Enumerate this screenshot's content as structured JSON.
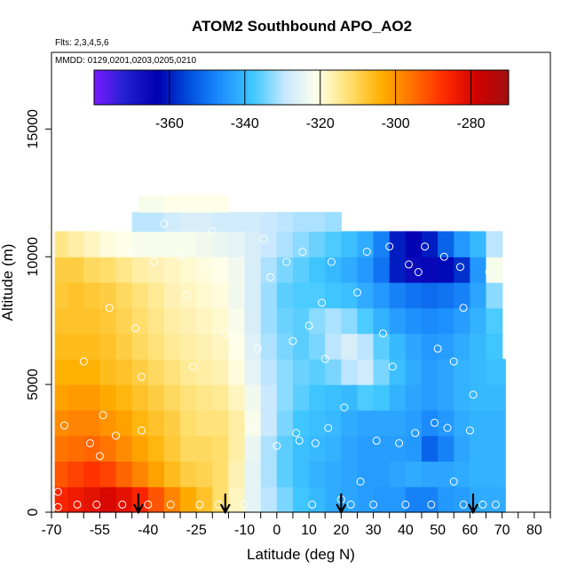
{
  "chart_data": {
    "type": "heatmap",
    "title": "ATOM2 Southbound APO_AO2",
    "note_flights": "Flts: 2,3,4,5,6",
    "note_dates": "MMDD: 0129,0201,0203,0205,0210",
    "xlabel": "Latitude (deg N)",
    "ylabel": "Altitude (m)",
    "xlim": [
      -70,
      85
    ],
    "ylim": [
      0,
      18000
    ],
    "x_ticks": [
      -70,
      -55,
      -40,
      -25,
      -10,
      0,
      10,
      20,
      30,
      40,
      50,
      60,
      70,
      80
    ],
    "x_tick_labels": [
      "-70",
      "-55",
      "-40",
      "-25",
      "-10",
      "0",
      "10",
      "20",
      "30",
      "40",
      "50",
      "60",
      "70",
      "80"
    ],
    "y_ticks": [
      0,
      5000,
      10000,
      15000
    ],
    "y_tick_labels": [
      "0",
      "5000",
      "10000",
      "15000"
    ],
    "colorbar": {
      "range": [
        -380,
        -270
      ],
      "ticks": [
        -360,
        -340,
        -320,
        -300,
        -280
      ],
      "tick_labels": [
        "-360",
        "-340",
        "-320",
        "-300",
        "-280"
      ],
      "colors": [
        "#7a1cff",
        "#2020d0",
        "#0000b0",
        "#0050e0",
        "#1e90ff",
        "#40c8ff",
        "#c8e8ff",
        "#ffffe8",
        "#ffe070",
        "#ffb000",
        "#ff7000",
        "#ff2a00",
        "#d00000",
        "#a01010"
      ]
    },
    "field": {
      "x_centers": [
        -67.5,
        -62.5,
        -57.5,
        -52.5,
        -47.5,
        -42.5,
        -37.5,
        -32.5,
        -27.5,
        -22.5,
        -17.5,
        -12.5,
        -7.5,
        -2.5,
        2.5,
        7.5,
        12.5,
        17.5,
        22.5,
        27.5,
        32.5,
        37.5,
        42.5,
        47.5,
        52.5,
        57.5,
        62.5,
        67.5,
        70.5
      ],
      "y_centers": [
        500,
        1500,
        2500,
        3500,
        4500,
        5500,
        6500,
        7500,
        8500,
        9500,
        10500,
        11500,
        12000
      ],
      "values": [
        [
          -286,
          -284,
          -282,
          -280,
          -282,
          -286,
          -292,
          -298,
          -303,
          -307,
          -312,
          -318,
          -325,
          -330,
          -334,
          -338,
          -340,
          -342,
          -343,
          -344,
          -345,
          -345,
          -348,
          -348,
          -345,
          -344,
          -342,
          -342,
          -342
        ],
        [
          -292,
          -290,
          -288,
          -290,
          -294,
          -298,
          -302,
          -306,
          -309,
          -310,
          -312,
          -317,
          -325,
          -331,
          -336,
          -339,
          -341,
          -342,
          -343,
          -344,
          -344,
          -343,
          -342,
          -343,
          -343,
          -342,
          -341,
          -341,
          -341
        ],
        [
          -296,
          -295,
          -294,
          -296,
          -299,
          -302,
          -305,
          -308,
          -311,
          -311,
          -312,
          -316,
          -324,
          -331,
          -336,
          -339,
          -340,
          -341,
          -343,
          -344,
          -344,
          -344,
          -345,
          -352,
          -348,
          -343,
          -341,
          -341,
          -341
        ],
        [
          -299,
          -298,
          -298,
          -300,
          -302,
          -305,
          -307,
          -309,
          -312,
          -313,
          -313,
          -316,
          -322,
          -329,
          -334,
          -338,
          -339,
          -340,
          -342,
          -343,
          -343,
          -343,
          -344,
          -347,
          -345,
          -342,
          -341,
          -341,
          -341
        ],
        [
          -302,
          -301,
          -301,
          -303,
          -305,
          -307,
          -309,
          -311,
          -313,
          -314,
          -315,
          -318,
          -323,
          -329,
          -333,
          -336,
          -338,
          -339,
          -340,
          -337,
          -338,
          -341,
          -343,
          -344,
          -343,
          -341,
          -340,
          -340,
          -340
        ],
        [
          -304,
          -304,
          -304,
          -306,
          -307,
          -309,
          -311,
          -313,
          -315,
          -316,
          -317,
          -320,
          -325,
          -330,
          -333,
          -335,
          -336,
          -334,
          -330,
          -328,
          -334,
          -339,
          -342,
          -344,
          -343,
          -341,
          -340,
          -339,
          -339
        ],
        [
          -306,
          -306,
          -306,
          -307,
          -309,
          -311,
          -313,
          -315,
          -316,
          -317,
          -318,
          -321,
          -326,
          -331,
          -334,
          -336,
          -334,
          -330,
          -327,
          -330,
          -336,
          -340,
          -343,
          -345,
          -344,
          -342,
          -340,
          -338,
          -338
        ],
        [
          -307,
          -307,
          -307,
          -308,
          -310,
          -312,
          -314,
          -316,
          -317,
          -318,
          -319,
          -322,
          -327,
          -332,
          -335,
          -336,
          -333,
          -331,
          -333,
          -337,
          -341,
          -344,
          -346,
          -347,
          -346,
          -344,
          -341,
          -337,
          -337
        ],
        [
          -308,
          -307,
          -308,
          -309,
          -311,
          -313,
          -315,
          -317,
          -318,
          -319,
          -320,
          -323,
          -327,
          -332,
          -336,
          -337,
          -337,
          -338,
          -339,
          -342,
          -345,
          -348,
          -350,
          -351,
          -350,
          -348,
          -343,
          -333,
          -333
        ],
        [
          -309,
          -309,
          -311,
          -312,
          -314,
          -316,
          -317,
          -318,
          -319,
          -320,
          -321,
          -323,
          -327,
          -331,
          -334,
          -336,
          -338,
          -340,
          -342,
          -345,
          -350,
          -360,
          -366,
          -365,
          -362,
          -358,
          -345,
          -322,
          -322
        ],
        [
          -314,
          -316,
          -318,
          -320,
          -321,
          -322,
          -322,
          -322,
          -322,
          -323,
          -324,
          -325,
          -327,
          -329,
          -331,
          -333,
          -335,
          -337,
          -339,
          -342,
          -348,
          -360,
          -364,
          -360,
          -352,
          -345,
          -340,
          -330,
          -330
        ],
        [
          null,
          null,
          null,
          null,
          -328,
          -330,
          -330,
          -328,
          -327,
          -327,
          -328,
          -328,
          -328,
          -329,
          -330,
          -331,
          -331,
          -332,
          -332,
          null,
          null,
          null,
          null,
          null,
          null,
          null,
          null,
          null,
          null
        ],
        [
          null,
          null,
          null,
          null,
          null,
          -322,
          -322,
          -321,
          -321,
          -321,
          -321,
          -321,
          null,
          null,
          null,
          null,
          null,
          null,
          null,
          null,
          null,
          null,
          null,
          null,
          null,
          null,
          null,
          null,
          null
        ]
      ],
      "row_extent": [
        [
          -69,
          71
        ],
        [
          -69,
          71
        ],
        [
          -69,
          71
        ],
        [
          -69,
          71
        ],
        [
          -69,
          71
        ],
        [
          -69,
          71
        ],
        [
          -69,
          70
        ],
        [
          -69,
          70
        ],
        [
          -69,
          70
        ],
        [
          -69,
          70
        ],
        [
          -69,
          70
        ],
        [
          -45,
          20
        ],
        [
          -43,
          -15
        ]
      ]
    },
    "observation_points": [
      [
        -68,
        200
      ],
      [
        -68,
        800
      ],
      [
        -66,
        3400
      ],
      [
        -62,
        300
      ],
      [
        -60,
        5900
      ],
      [
        -58,
        2700
      ],
      [
        -56,
        300
      ],
      [
        -55,
        2200
      ],
      [
        -54,
        3800
      ],
      [
        -52,
        8000
      ],
      [
        -50,
        3000
      ],
      [
        -48,
        300
      ],
      [
        -45,
        10200
      ],
      [
        -44,
        7200
      ],
      [
        -42,
        3200
      ],
      [
        -42,
        5300
      ],
      [
        -40,
        300
      ],
      [
        -38,
        9800
      ],
      [
        -35,
        11300
      ],
      [
        -33,
        300
      ],
      [
        -30,
        10000
      ],
      [
        -28,
        8500
      ],
      [
        -26,
        5700
      ],
      [
        -24,
        300
      ],
      [
        -22,
        9700
      ],
      [
        -20,
        11000
      ],
      [
        -18,
        300
      ],
      [
        -16,
        7000
      ],
      [
        -12,
        11900
      ],
      [
        -10,
        300
      ],
      [
        -8,
        3300
      ],
      [
        -6,
        6400
      ],
      [
        -4,
        10700
      ],
      [
        -2,
        9200
      ],
      [
        0,
        2600
      ],
      [
        3,
        9800
      ],
      [
        5,
        6700
      ],
      [
        6,
        3100
      ],
      [
        7,
        2800
      ],
      [
        8,
        10200
      ],
      [
        10,
        7300
      ],
      [
        11,
        300
      ],
      [
        12,
        2700
      ],
      [
        14,
        8200
      ],
      [
        15,
        6000
      ],
      [
        16,
        3300
      ],
      [
        17,
        9800
      ],
      [
        20,
        500
      ],
      [
        21,
        4100
      ],
      [
        23,
        300
      ],
      [
        25,
        8600
      ],
      [
        26,
        1200
      ],
      [
        28,
        10200
      ],
      [
        30,
        300
      ],
      [
        31,
        2800
      ],
      [
        33,
        7000
      ],
      [
        35,
        10400
      ],
      [
        36,
        5700
      ],
      [
        38,
        2700
      ],
      [
        40,
        300
      ],
      [
        41,
        9700
      ],
      [
        43,
        3100
      ],
      [
        44,
        9400
      ],
      [
        46,
        10400
      ],
      [
        48,
        300
      ],
      [
        49,
        3500
      ],
      [
        50,
        6400
      ],
      [
        52,
        10000
      ],
      [
        53,
        3300
      ],
      [
        55,
        1200
      ],
      [
        55,
        5900
      ],
      [
        57,
        9600
      ],
      [
        58,
        300
      ],
      [
        58,
        8000
      ],
      [
        60,
        3200
      ],
      [
        61,
        4600
      ],
      [
        64,
        300
      ],
      [
        66,
        9400
      ],
      [
        68,
        300
      ]
    ],
    "arrows_latitude": [
      -43,
      -16,
      20,
      61
    ]
  }
}
